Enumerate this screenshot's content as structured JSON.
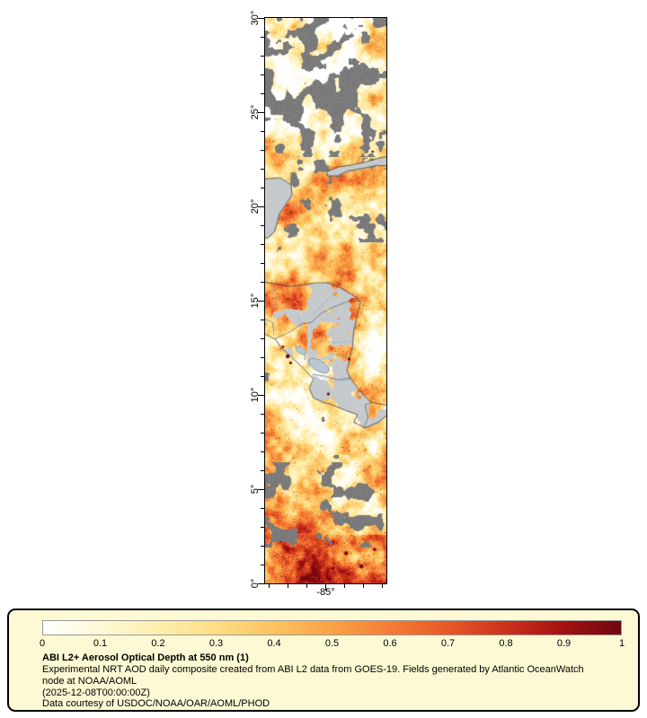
{
  "map": {
    "lat_ticks": [
      "30°",
      "25°",
      "20°",
      "15°",
      "10°",
      "5°",
      "0°"
    ],
    "lon_ticks": [
      "-85°"
    ],
    "land_color": "#c6cacd",
    "cloud_color": "#7b7b7b",
    "lake_color": "#b9c8d4",
    "river_color": "#86abd0",
    "coast_color": "#3c4046",
    "hotspot_color": "#6e070f"
  },
  "legend": {
    "background_color": "#fdf9d4",
    "border_color": "#000000",
    "scale_ticks": [
      "0",
      "0.1",
      "0.2",
      "0.3",
      "0.4",
      "0.5",
      "0.6",
      "0.7",
      "0.8",
      "0.9",
      "1"
    ],
    "title": "ABI L2+ Aerosol Optical Depth at 550 nm (1)",
    "description": "Experimental NRT AOD daily composite created from ABI L2 data from GOES-19. Fields generated by Atlantic OceanWatch node at NOAA/AOML",
    "timestamp": "(2025-12-08T00:00:00Z)",
    "credit": "Data courtesy of USDOC/NOAA/OAR/AOML/PHOD",
    "colorbar": {
      "min": 0,
      "max": 1,
      "stops": [
        {
          "value": 0.0,
          "color": "#ffffff"
        },
        {
          "value": 0.1,
          "color": "#fff8d6"
        },
        {
          "value": 0.2,
          "color": "#feeeae"
        },
        {
          "value": 0.3,
          "color": "#fddd84"
        },
        {
          "value": 0.4,
          "color": "#fcc360"
        },
        {
          "value": 0.5,
          "color": "#faa245"
        },
        {
          "value": 0.6,
          "color": "#f47d35"
        },
        {
          "value": 0.7,
          "color": "#e65827"
        },
        {
          "value": 0.8,
          "color": "#cc321b"
        },
        {
          "value": 0.9,
          "color": "#a21212"
        },
        {
          "value": 1.0,
          "color": "#6e070f"
        }
      ]
    }
  },
  "chart_data": {
    "type": "heatmap",
    "title": "ABI L2+ Aerosol Optical Depth at 550 nm (1)",
    "variable": "Aerosol Optical Depth at 550 nm",
    "colorbar_range": [
      0,
      1
    ],
    "colorbar_tick_labels": [
      "0",
      "0.1",
      "0.2",
      "0.3",
      "0.4",
      "0.5",
      "0.6",
      "0.7",
      "0.8",
      "0.9",
      "1"
    ],
    "lat_axis_ticks_deg": [
      30,
      25,
      20,
      15,
      10,
      5,
      0
    ],
    "lon_axis_ticks_deg": [
      -85
    ],
    "legend_position": "bottom"
  }
}
